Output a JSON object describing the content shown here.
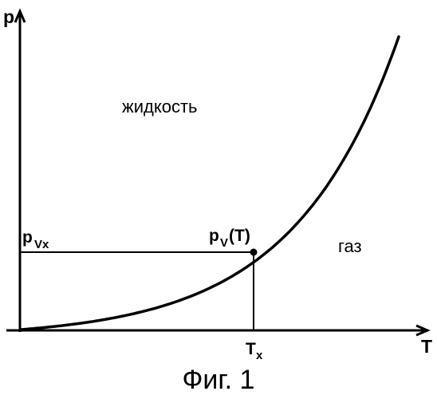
{
  "figure": {
    "axis_y_label": "p",
    "axis_x_label": "T",
    "region_liquid": "жидкость",
    "region_gas": "газ",
    "pvx_main": "p",
    "pvx_sub": "Vx",
    "curve_label_main": "p",
    "curve_label_sub": "V",
    "curve_label_arg": "(T)",
    "tx_main": "T",
    "tx_sub": "x",
    "caption": "Фиг. 1"
  }
}
